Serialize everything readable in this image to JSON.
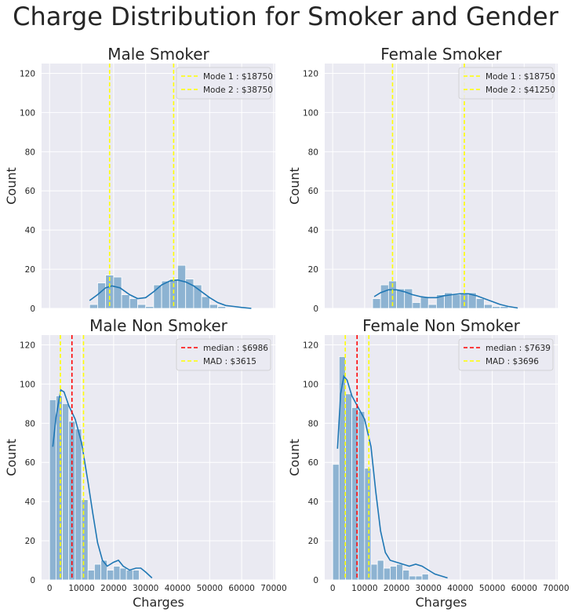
{
  "figure": {
    "title": "Charge Distribution for Smoker and Gender",
    "colors": {
      "bar_fill": "#8db3d2",
      "kde_line": "#1f77b4",
      "mode_line": "#ffff00",
      "median_line": "#ff0000",
      "axes_bg": "#eaeaf2",
      "grid": "#ffffff",
      "text": "#262626"
    }
  },
  "chart_data": [
    {
      "type": "bar",
      "title": "Male Smoker",
      "xlabel": "",
      "ylabel": "Count",
      "xlim": [
        -2500,
        70500
      ],
      "ylim": [
        0,
        125
      ],
      "xticks": [],
      "yticks": [
        0,
        20,
        40,
        60,
        80,
        100,
        120
      ],
      "grid": true,
      "bin_start": 12500,
      "bin_width": 2500,
      "values": [
        2,
        13,
        17,
        16,
        7,
        5,
        2,
        1,
        12,
        14,
        15,
        22,
        15,
        12,
        6,
        2,
        1
      ],
      "kde": {
        "x": [
          12500,
          15000,
          17500,
          19500,
          22000,
          25000,
          27500,
          30000,
          32500,
          35000,
          37500,
          40000,
          42500,
          45000,
          47500,
          50000,
          52500,
          55000,
          57500,
          60000,
          63000
        ],
        "y": [
          4,
          7,
          10.5,
          11.5,
          10.5,
          7,
          5,
          5.5,
          8.5,
          12,
          14,
          14.5,
          13.5,
          11.5,
          8.5,
          5.5,
          3,
          1.5,
          1,
          0.5,
          0
        ]
      },
      "vlines": [
        {
          "x": 18750,
          "color": "#ffff00",
          "label": "Mode 1 : $18750"
        },
        {
          "x": 38750,
          "color": "#ffff00",
          "label": "Mode 2 : $38750"
        }
      ],
      "legend": "top-right"
    },
    {
      "type": "bar",
      "title": "Female Smoker",
      "xlabel": "",
      "ylabel": "Count",
      "xlim": [
        -2500,
        70500
      ],
      "ylim": [
        0,
        125
      ],
      "xticks": [],
      "yticks": [
        0,
        20,
        40,
        60,
        80,
        100,
        120
      ],
      "grid": true,
      "bin_start": 12500,
      "bin_width": 2500,
      "values": [
        5,
        12,
        14,
        10,
        10,
        3,
        6,
        2,
        7,
        8,
        7,
        8,
        8,
        5,
        2,
        1,
        1
      ],
      "kde": {
        "x": [
          13000,
          15000,
          17500,
          20000,
          22500,
          25000,
          27500,
          30000,
          32500,
          35000,
          37500,
          40000,
          42500,
          45000,
          47500,
          50000,
          52500,
          55000,
          58000
        ],
        "y": [
          6,
          8,
          9.5,
          9.5,
          8.5,
          7,
          6,
          5.5,
          5.5,
          6.5,
          7,
          7.5,
          7.5,
          6.5,
          5,
          3.5,
          2,
          1,
          0.2
        ]
      },
      "vlines": [
        {
          "x": 18750,
          "color": "#ffff00",
          "label": "Mode 1 : $18750"
        },
        {
          "x": 41250,
          "color": "#ffff00",
          "label": "Mode 2 : $41250"
        }
      ],
      "legend": "top-right"
    },
    {
      "type": "bar",
      "title": "Male Non Smoker",
      "xlabel": "Charges",
      "ylabel": "Count",
      "xlim": [
        -2500,
        70500
      ],
      "ylim": [
        0,
        125
      ],
      "xticks": [
        0,
        10000,
        20000,
        30000,
        40000,
        50000,
        60000,
        70000
      ],
      "yticks": [
        0,
        20,
        40,
        60,
        80,
        100,
        120
      ],
      "grid": true,
      "bin_start": 0,
      "bin_width": 2000,
      "values": [
        92,
        94,
        90,
        81,
        77,
        41,
        5,
        8,
        10,
        5,
        7,
        6,
        5,
        5
      ],
      "kde": {
        "x": [
          1000,
          2000,
          3500,
          4500,
          6000,
          8000,
          10000,
          12000,
          13500,
          15000,
          16500,
          18000,
          20000,
          21500,
          23000,
          25000,
          27000,
          28500,
          30000,
          32000
        ],
        "y": [
          68,
          83,
          97,
          96,
          89,
          82,
          70,
          50,
          34,
          19,
          10,
          7,
          9,
          10,
          7,
          5,
          6,
          6,
          4,
          1
        ]
      },
      "vlines": [
        {
          "x": 6986,
          "color": "#ff0000",
          "label": "median : $6986"
        },
        {
          "x": 3371,
          "color": "#ffff00",
          "label": "MAD : $3615"
        },
        {
          "x": 10601,
          "color": "#ffff00",
          "label": ""
        }
      ],
      "legend": "top-right"
    },
    {
      "type": "bar",
      "title": "Female Non Smoker",
      "xlabel": "Charges",
      "ylabel": "Count",
      "xlim": [
        -2500,
        70500
      ],
      "ylim": [
        0,
        125
      ],
      "xticks": [
        0,
        10000,
        20000,
        30000,
        40000,
        50000,
        60000,
        70000
      ],
      "yticks": [
        0,
        20,
        40,
        60,
        80,
        100,
        120
      ],
      "grid": true,
      "bin_start": 0,
      "bin_width": 2000,
      "values": [
        59,
        114,
        95,
        88,
        86,
        57,
        8,
        10,
        6,
        7,
        8,
        5,
        2,
        2,
        3
      ],
      "kde": {
        "x": [
          1500,
          2500,
          3500,
          4500,
          6000,
          8000,
          10000,
          12000,
          13500,
          15000,
          16500,
          18000,
          20000,
          22000,
          24000,
          26000,
          28000,
          30000,
          32000,
          34000,
          36000
        ],
        "y": [
          67,
          95,
          104,
          102,
          94,
          88,
          82,
          68,
          45,
          25,
          14,
          10,
          9,
          8,
          7,
          8,
          7,
          5,
          3,
          2,
          1
        ]
      },
      "vlines": [
        {
          "x": 7639,
          "color": "#ff0000",
          "label": "median : $7639"
        },
        {
          "x": 3943,
          "color": "#ffff00",
          "label": "MAD : $3696"
        },
        {
          "x": 11335,
          "color": "#ffff00",
          "label": ""
        }
      ],
      "legend": "top-right"
    }
  ]
}
